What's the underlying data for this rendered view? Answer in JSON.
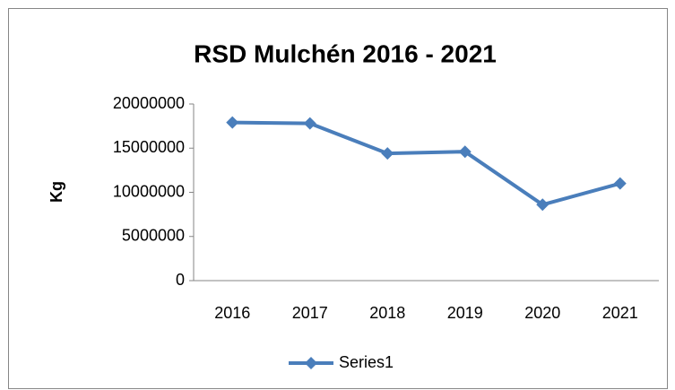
{
  "chart_data": {
    "type": "line",
    "title": "RSD Mulchén 2016 - 2021",
    "ylabel": "Kg",
    "categories": [
      "2016",
      "2017",
      "2018",
      "2019",
      "2020",
      "2021"
    ],
    "series": [
      {
        "name": "Series1",
        "color": "#4a7ebb",
        "values": [
          17900000,
          17800000,
          14400000,
          14600000,
          8600000,
          11000000
        ]
      }
    ],
    "ylim": [
      0,
      20000000
    ],
    "yticks": [
      0,
      5000000,
      10000000,
      15000000,
      20000000
    ],
    "grid": false,
    "legend": "bottom"
  }
}
